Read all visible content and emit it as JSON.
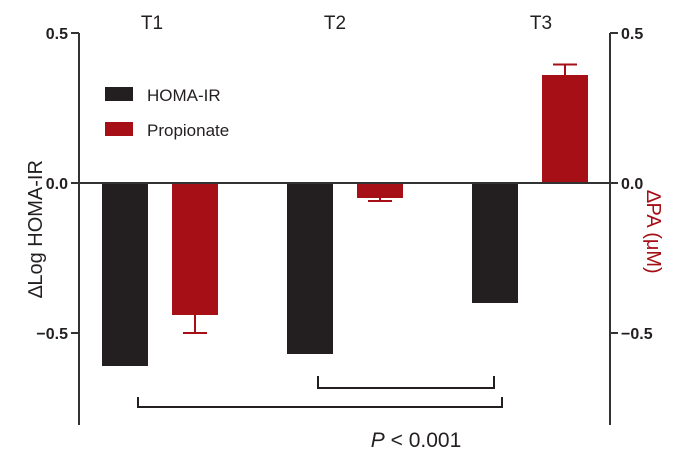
{
  "chart_data": {
    "type": "bar",
    "groups": [
      "T1",
      "T2",
      "T3"
    ],
    "series": [
      {
        "name": "HOMA-IR",
        "axis": "left",
        "color": "#231f20",
        "values": [
          -0.61,
          -0.57,
          -0.4
        ],
        "errors": [
          0,
          0,
          0
        ]
      },
      {
        "name": "Propionate",
        "axis": "right",
        "color": "#a50f15",
        "values": [
          -0.44,
          -0.05,
          0.36
        ],
        "errors": [
          0.06,
          0.01,
          0.035
        ]
      }
    ],
    "yleft": {
      "label": "∆Log HOMA-IR",
      "ticks": [
        0.5,
        0.0,
        -0.5
      ],
      "tick_labels": [
        "0.5",
        "0.0",
        "−0.5"
      ],
      "range": [
        -0.8,
        0.55
      ]
    },
    "yright": {
      "label": "∆PA (μM)",
      "ticks": [
        0.5,
        0.0,
        -0.5
      ],
      "tick_labels": [
        "0.5",
        "0.0",
        "−0.5"
      ],
      "range": [
        -0.8,
        0.55
      ],
      "label_color": "#a50f15"
    },
    "annotation": {
      "p_symbol": "P",
      "p_text": " < 0.001",
      "comparisons": [
        [
          "T2",
          "T3"
        ],
        [
          "T1",
          "T3"
        ]
      ]
    },
    "legend_placement": "top-left",
    "grid": false
  }
}
